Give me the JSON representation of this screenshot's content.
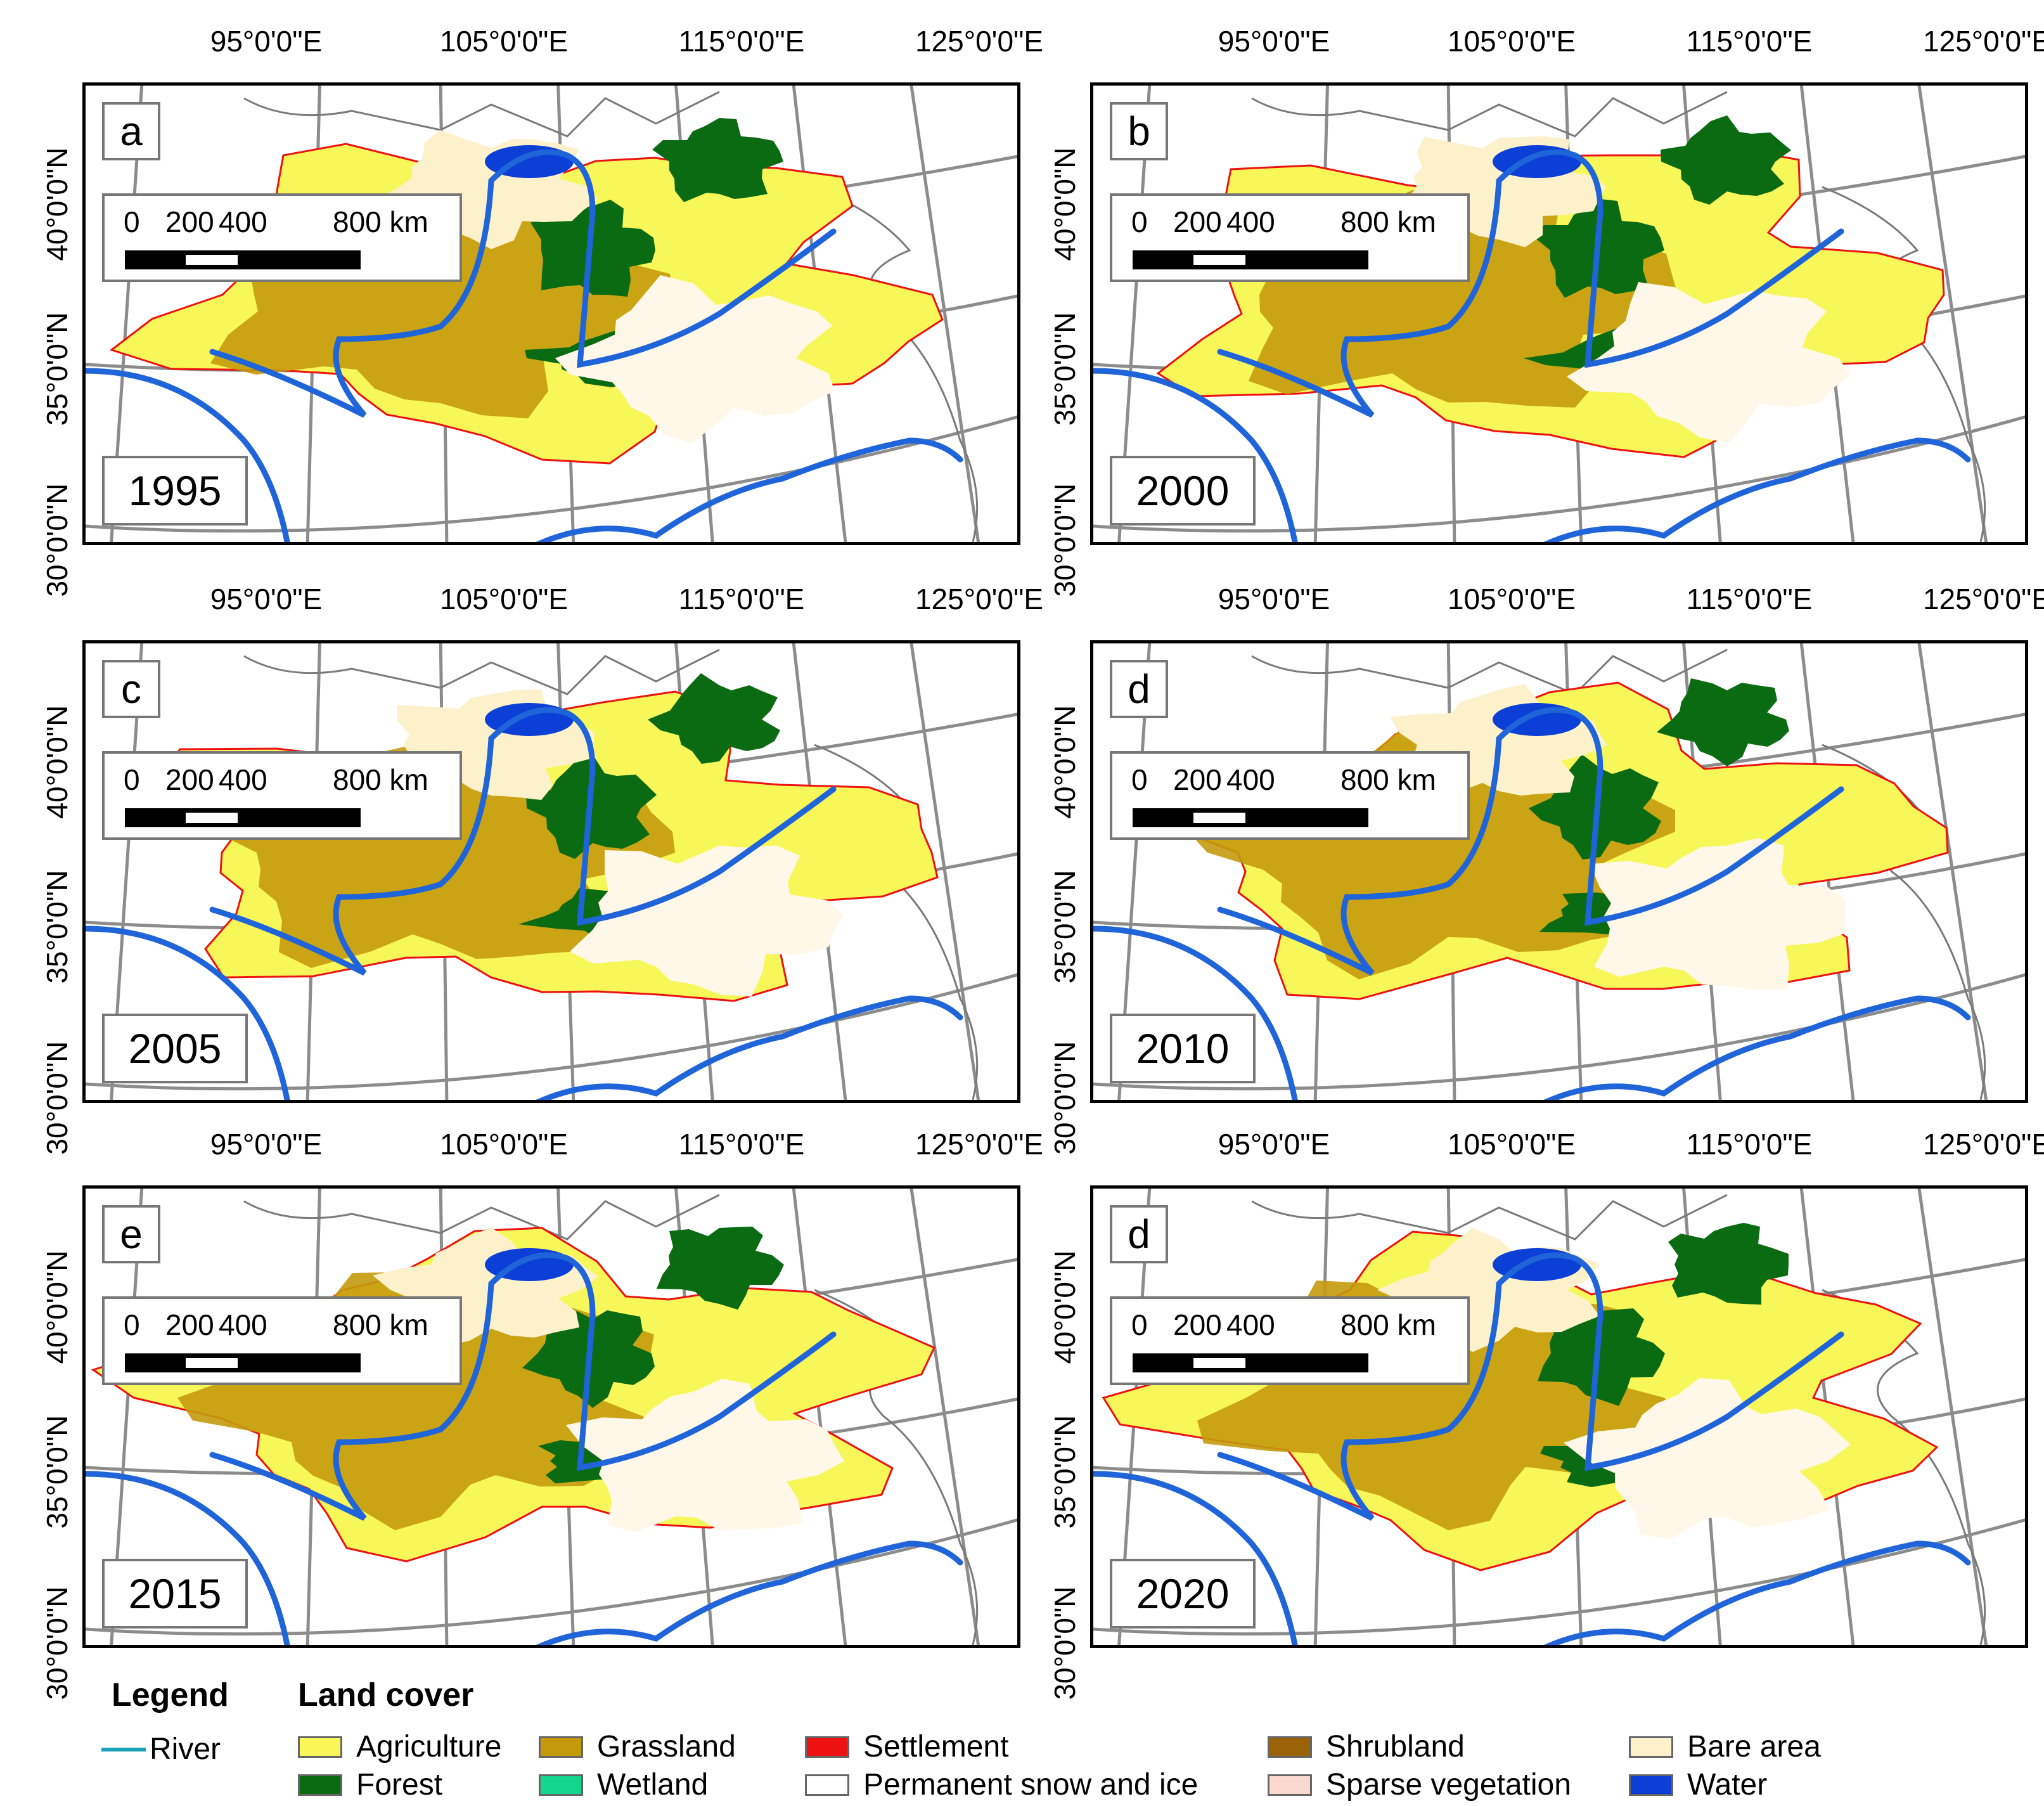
{
  "panels": [
    {
      "letter": "a",
      "year": "1995"
    },
    {
      "letter": "b",
      "year": "2000"
    },
    {
      "letter": "c",
      "year": "2005"
    },
    {
      "letter": "d",
      "year": "2010"
    },
    {
      "letter": "e",
      "year": "2015"
    },
    {
      "letter": "d",
      "year": "2020"
    }
  ],
  "longitude_labels": [
    "95°0'0\"E",
    "105°0'0\"E",
    "115°0'0\"E",
    "125°0'0\"E"
  ],
  "latitude_labels": [
    "40°0'0\"N",
    "35°0'0\"N",
    "30°0'0\"N"
  ],
  "scale_bar": {
    "labels": [
      "0",
      "200",
      "400",
      "800 km"
    ]
  },
  "legend": {
    "title": "Legend",
    "river_label": "River",
    "land_cover_title": "Land cover",
    "classes": [
      {
        "name": "Agriculture",
        "color": "#f7f75a"
      },
      {
        "name": "Forest",
        "color": "#0b6b12"
      },
      {
        "name": "Grassland",
        "color": "#c49a0c"
      },
      {
        "name": "Wetland",
        "color": "#13d68f"
      },
      {
        "name": "Settlement",
        "color": "#ee1111"
      },
      {
        "name": "Permanent snow and ice",
        "color": "#ffffff"
      },
      {
        "name": "Shrubland",
        "color": "#9a6308"
      },
      {
        "name": "Sparse vegetation",
        "color": "#fbd9cf"
      },
      {
        "name": "Bare area",
        "color": "#fdf1cb"
      },
      {
        "name": "Water",
        "color": "#0b3fd6"
      }
    ],
    "river_color": "#1aa3b8"
  },
  "colors": {
    "graticule": "#8c8c8c",
    "boundary": "#ee1111",
    "river": "#1f64d8",
    "coast": "#7a7a7a"
  }
}
